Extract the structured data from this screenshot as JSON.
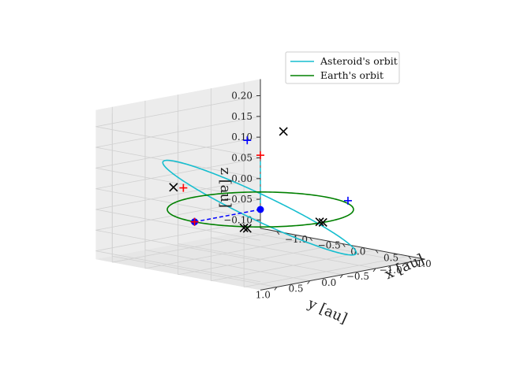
{
  "chart_data": {
    "type": "line3d",
    "projection": {
      "elev_deg": 20,
      "azim_deg": -135
    },
    "axes": {
      "x": {
        "label": "$x$ [au]",
        "label_text": "x [au]",
        "lim": [
          -1.25,
          1.25
        ],
        "ticks": [
          -1.0,
          -0.5,
          0.0,
          0.5,
          1.0
        ],
        "tick_labels": [
          "−1.0",
          "−0.5",
          "0.0",
          "0.5",
          "1.0"
        ]
      },
      "y": {
        "label": "$y$ [au]",
        "label_text": "y [au]",
        "lim": [
          -1.25,
          1.25
        ],
        "ticks": [
          1.0,
          0.5,
          0.0,
          -0.5,
          -1.0
        ],
        "tick_labels": [
          "1.0",
          "0.5",
          "0.0",
          "−0.5",
          "−1.0"
        ]
      },
      "z": {
        "label": "$z$ [au]",
        "label_text": "z [au]",
        "lim": [
          -0.12,
          0.24
        ],
        "ticks": [
          -0.1,
          -0.05,
          0.0,
          0.05,
          0.1,
          0.15,
          0.2
        ],
        "tick_labels": [
          "−0.10",
          "−0.05",
          "0.00",
          "0.05",
          "0.10",
          "0.15",
          "0.20"
        ]
      }
    },
    "grid": true,
    "legend": {
      "location": "upper right",
      "entries": [
        {
          "label": "Asteroid's orbit",
          "color": "#17becf"
        },
        {
          "label": "Earth's orbit",
          "color": "#008000"
        }
      ]
    },
    "series": [
      {
        "name": "Asteroid's orbit",
        "kind": "ellipse",
        "color": "#17becf",
        "semi_major_au": 1.05,
        "eccentricity": 0.1,
        "inclination_deg": 6.0,
        "node_deg": 40,
        "peri_deg": 0
      },
      {
        "name": "Earth's orbit",
        "kind": "circle",
        "color": "#008000",
        "radius_au": 1.0
      }
    ],
    "annotations": {
      "sun": {
        "x": 0.0,
        "y": 0.0,
        "z": 0.0,
        "color": "#0000ff"
      },
      "earth": {
        "x": 0.0,
        "y": 1.0,
        "z": 0.0,
        "color": "#0000ff"
      },
      "sun_earth_line": {
        "color": "#0000ff",
        "style": "dashed"
      },
      "sun_asteroid_line": {
        "color": "#17becf",
        "style": "dashed"
      },
      "blue_plus": [
        {
          "x": -0.55,
          "y": -0.35,
          "z": 0.14
        },
        {
          "x": 0.98,
          "y": -0.35,
          "z": 0.04
        },
        {
          "x": 0.0,
          "y": 1.0,
          "z": 0.0
        }
      ],
      "red_plus": [
        {
          "x": -0.62,
          "y": 0.55,
          "z": 0.05
        },
        {
          "x": -0.35,
          "y": -0.35,
          "z": 0.11
        },
        {
          "x": 0.0,
          "y": 1.0,
          "z": 0.0
        }
      ],
      "black_x": [
        {
          "x": -0.72,
          "y": 0.6,
          "z": 0.05
        },
        {
          "x": -0.3,
          "y": -0.65,
          "z": 0.16
        },
        {
          "x": 0.45,
          "y": 0.7,
          "z": -0.01
        },
        {
          "x": 0.5,
          "y": 0.7,
          "z": -0.01
        },
        {
          "x": 0.95,
          "y": 0.05,
          "z": 0.0
        },
        {
          "x": 1.0,
          "y": 0.05,
          "z": 0.0
        }
      ]
    }
  }
}
